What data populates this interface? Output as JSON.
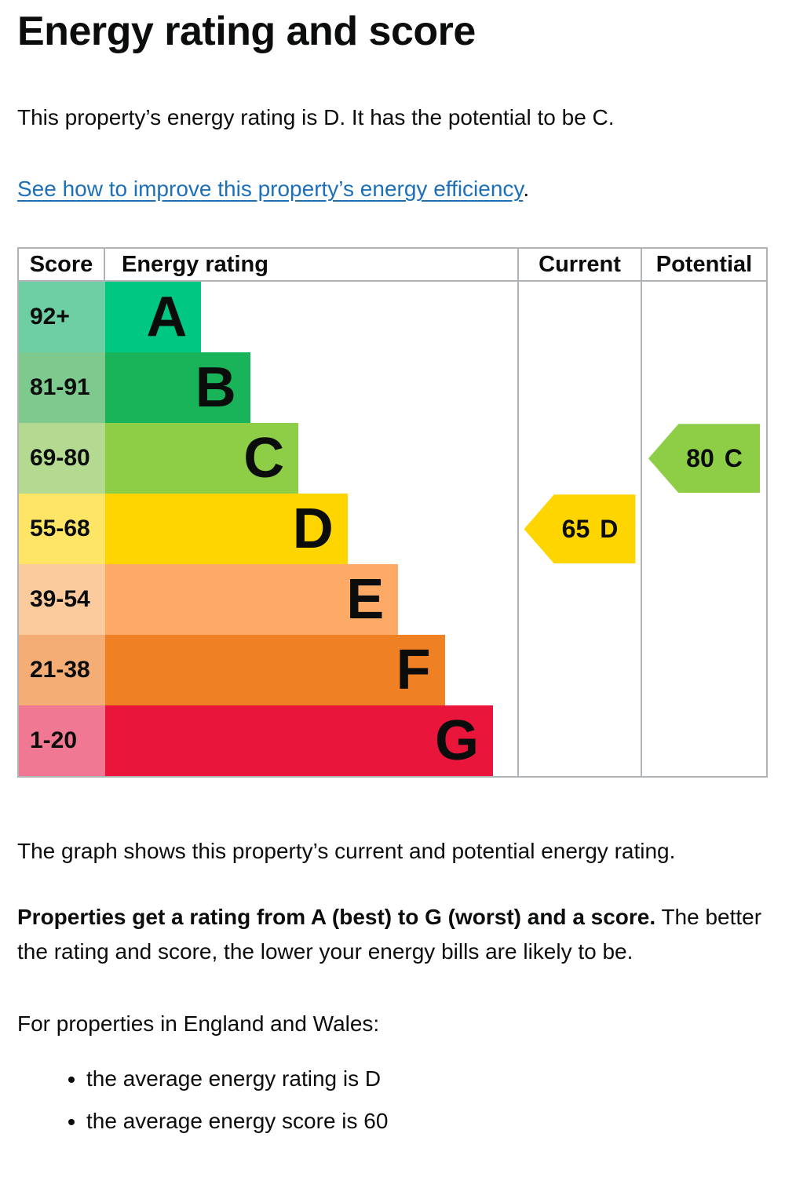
{
  "page": {
    "title": "Energy rating and score",
    "intro": "This property’s energy rating is D. It has the potential to be C.",
    "improve_link": "See how to improve this property’s energy efficiency",
    "improve_link_suffix": ".",
    "caption": "The graph shows this property’s current and potential energy rating.",
    "explain_bold": "Properties get a rating from A (best) to G (worst) and a score.",
    "explain_rest": " The better the rating and score, the lower your energy bills are likely to be.",
    "region_heading": "For properties in England and Wales:",
    "bullets": [
      "the average energy rating is D",
      "the average energy score is 60"
    ]
  },
  "chart_data": {
    "type": "bar",
    "title": "Energy rating and score",
    "headers": {
      "score": "Score",
      "rating": "Energy rating",
      "current": "Current",
      "potential": "Potential"
    },
    "bands": [
      {
        "letter": "A",
        "score_range": "92+",
        "color": "#00c781",
        "tint": "#6fcfa4",
        "width_pct": 23.3
      },
      {
        "letter": "B",
        "score_range": "81-91",
        "color": "#19b459",
        "tint": "#7dc98e",
        "width_pct": 35.2
      },
      {
        "letter": "C",
        "score_range": "69-80",
        "color": "#8dce46",
        "tint": "#b3da90",
        "width_pct": 46.9
      },
      {
        "letter": "D",
        "score_range": "55-68",
        "color": "#ffd500",
        "tint": "#ffe566",
        "width_pct": 58.8
      },
      {
        "letter": "E",
        "score_range": "39-54",
        "color": "#fcaa65",
        "tint": "#fbcb9e",
        "width_pct": 71.1
      },
      {
        "letter": "F",
        "score_range": "21-38",
        "color": "#ef8023",
        "tint": "#f4ae75",
        "width_pct": 82.4
      },
      {
        "letter": "G",
        "score_range": "1-20",
        "color": "#e9153b",
        "tint": "#f17892",
        "width_pct": 94.1
      }
    ],
    "current": {
      "value": 65,
      "band": "D",
      "color": "#ffd500",
      "band_index": 3
    },
    "potential": {
      "value": 80,
      "band": "C",
      "color": "#8dce46",
      "band_index": 2
    },
    "legend_position": "none",
    "grid": false
  },
  "colors": {
    "text": "#0b0c0c",
    "link": "#1d70b8",
    "table_border": "#b1b4b6"
  }
}
